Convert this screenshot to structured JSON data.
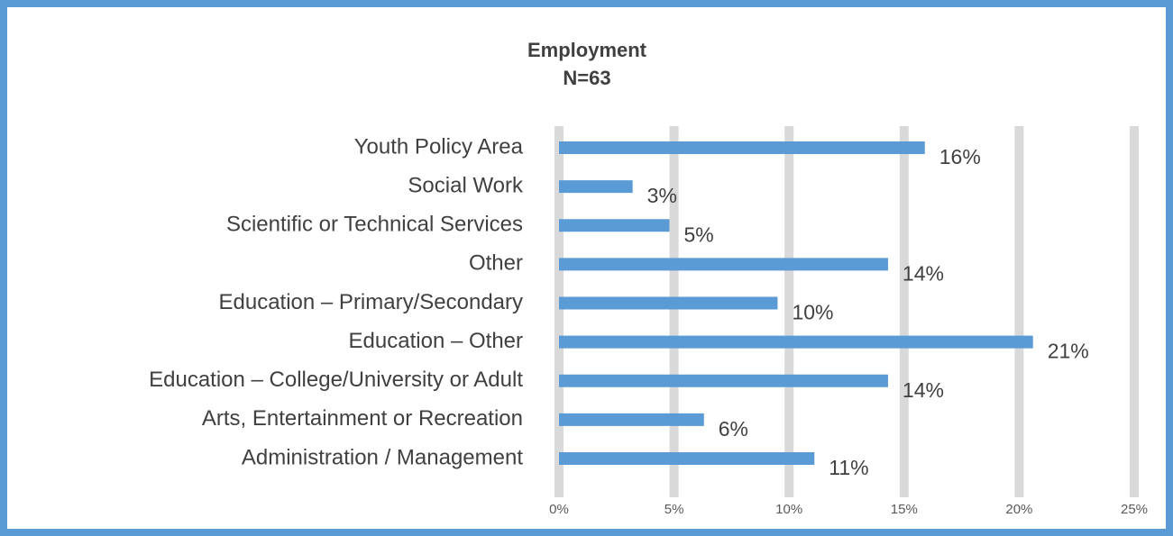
{
  "chart_data": {
    "type": "hbar",
    "title": "Employment",
    "subtitle": "N=63",
    "categories": [
      "Youth Policy Area",
      "Social Work",
      "Scientific or Technical Services",
      "Other",
      "Education – Primary/Secondary",
      "Education – Other",
      "Education – College/University or Adult",
      "Arts, Entertainment or Recreation",
      "Administration / Management"
    ],
    "values": [
      15.9,
      3.2,
      4.8,
      14.3,
      9.5,
      20.6,
      14.3,
      6.3,
      11.1
    ],
    "value_labels": [
      "16%",
      "3%",
      "5%",
      "14%",
      "10%",
      "21%",
      "14%",
      "6%",
      "11%"
    ],
    "color": "#5b9bd5",
    "xlim": [
      0,
      25
    ],
    "xticks": [
      {
        "value": 0,
        "label": "0%"
      },
      {
        "value": 5,
        "label": "5%"
      },
      {
        "value": 10,
        "label": "10%"
      },
      {
        "value": 15,
        "label": "15%"
      },
      {
        "value": 20,
        "label": "20%"
      },
      {
        "value": 25,
        "label": "25%"
      }
    ],
    "grid": true
  }
}
